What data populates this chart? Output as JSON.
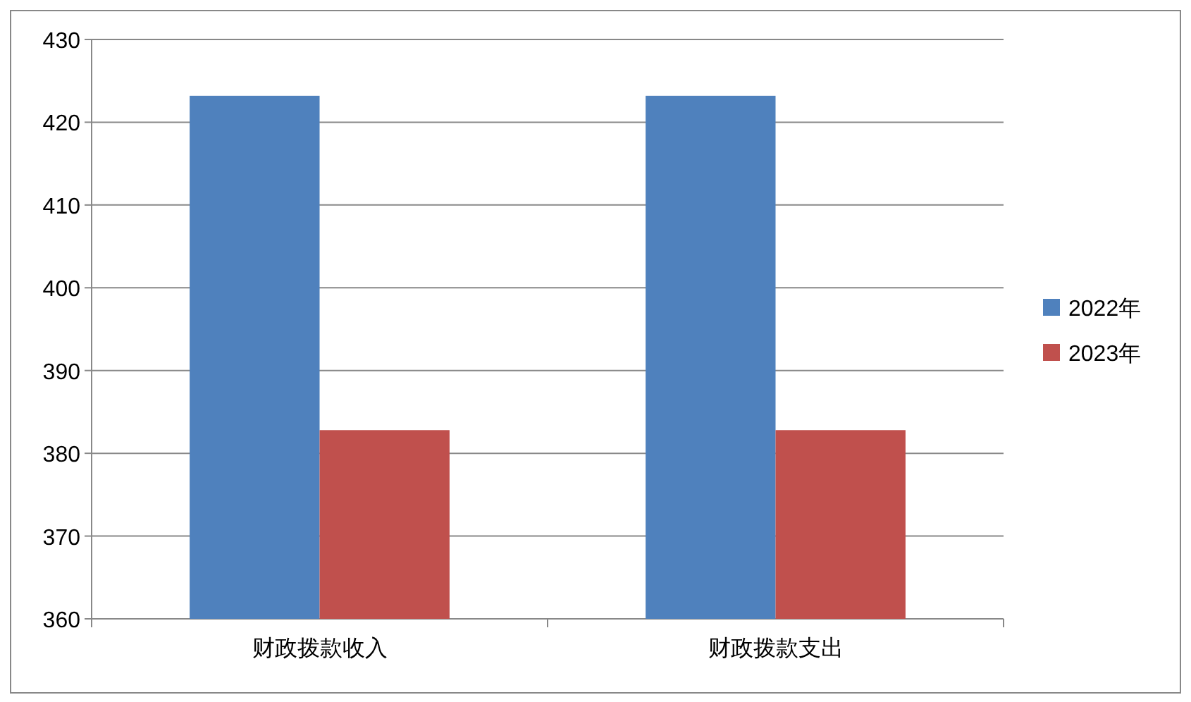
{
  "chart_data": {
    "type": "bar",
    "categories": [
      "财政拨款收入",
      "财政拨款支出"
    ],
    "series": [
      {
        "name": "2022年",
        "color": "#4f81bd",
        "values": [
          423.2,
          423.2
        ]
      },
      {
        "name": "2023年",
        "color": "#c0504d",
        "values": [
          382.8,
          382.8
        ]
      }
    ],
    "ylim": [
      360,
      430
    ],
    "yticks": [
      360,
      370,
      380,
      390,
      400,
      410,
      420,
      430
    ],
    "grid": "y",
    "legend": "right"
  }
}
